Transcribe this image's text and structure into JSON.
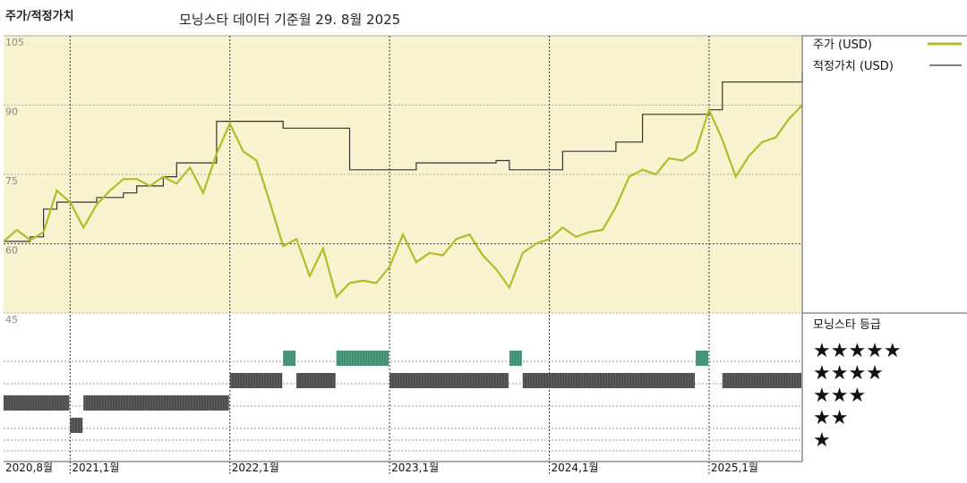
{
  "header": {
    "title": "주가/적정가치",
    "subtitle": "모닝스타 데이터 기준월 29. 8월 2025"
  },
  "colors": {
    "plot_bg": "#f8f3cf",
    "price": "#b5ba2a",
    "fair_value": "#333333",
    "rating_bar": "#4a4a4a",
    "rating_bar_5": "#3d8f6f"
  },
  "legend": {
    "price_label": "주가 (USD)",
    "fair_label": "적정가치 (USD)",
    "rating_title": "모닝스타 등급"
  },
  "rating_levels": [
    {
      "stars": 5,
      "label": "★★★★★"
    },
    {
      "stars": 4,
      "label": "★★★★"
    },
    {
      "stars": 3,
      "label": "★★★"
    },
    {
      "stars": 2,
      "label": "★★"
    },
    {
      "stars": 1,
      "label": "★"
    }
  ],
  "chart_data": {
    "type": "line",
    "x_start": "2020-08",
    "x_end": "2025-08",
    "y_ticks": [
      105,
      90,
      75,
      60,
      45
    ],
    "x_ticks": [
      "2020,8월",
      "2021,1월",
      "2022,1월",
      "2023,1월",
      "2024,1월",
      "2025,1월"
    ],
    "ylim": [
      45,
      105
    ],
    "series": [
      {
        "name": "주가 (USD)",
        "points": [
          [
            "2020-08",
            60.5
          ],
          [
            "2020-09",
            63.0
          ],
          [
            "2020-10",
            60.8
          ],
          [
            "2020-11",
            62.5
          ],
          [
            "2020-12",
            71.5
          ],
          [
            "2021-01",
            69.0
          ],
          [
            "2021-02",
            63.5
          ],
          [
            "2021-03",
            68.5
          ],
          [
            "2021-04",
            71.5
          ],
          [
            "2021-05",
            74.0
          ],
          [
            "2021-06",
            74.0
          ],
          [
            "2021-07",
            72.5
          ],
          [
            "2021-08",
            74.5
          ],
          [
            "2021-09",
            73.0
          ],
          [
            "2021-10",
            76.5
          ],
          [
            "2021-11",
            71.0
          ],
          [
            "2021-12",
            79.5
          ],
          [
            "2022-01",
            86.0
          ],
          [
            "2022-02",
            80.0
          ],
          [
            "2022-03",
            78.0
          ],
          [
            "2022-04",
            69.0
          ],
          [
            "2022-05",
            59.5
          ],
          [
            "2022-06",
            61.0
          ],
          [
            "2022-07",
            53.0
          ],
          [
            "2022-08",
            59.0
          ],
          [
            "2022-09",
            48.5
          ],
          [
            "2022-10",
            51.5
          ],
          [
            "2022-11",
            52.0
          ],
          [
            "2022-12",
            51.5
          ],
          [
            "2023-01",
            55.0
          ],
          [
            "2023-02",
            62.0
          ],
          [
            "2023-03",
            56.0
          ],
          [
            "2023-04",
            58.0
          ],
          [
            "2023-05",
            57.5
          ],
          [
            "2023-06",
            61.0
          ],
          [
            "2023-07",
            62.0
          ],
          [
            "2023-08",
            57.5
          ],
          [
            "2023-09",
            54.5
          ],
          [
            "2023-10",
            50.5
          ],
          [
            "2023-11",
            58.0
          ],
          [
            "2023-12",
            60.0
          ],
          [
            "2024-01",
            61.0
          ],
          [
            "2024-02",
            63.5
          ],
          [
            "2024-03",
            61.5
          ],
          [
            "2024-04",
            62.5
          ],
          [
            "2024-05",
            63.0
          ],
          [
            "2024-06",
            68.0
          ],
          [
            "2024-07",
            74.5
          ],
          [
            "2024-08",
            76.0
          ],
          [
            "2024-09",
            75.0
          ],
          [
            "2024-10",
            78.5
          ],
          [
            "2024-11",
            78.0
          ],
          [
            "2024-12",
            80.0
          ],
          [
            "2025-01",
            89.0
          ],
          [
            "2025-02",
            82.5
          ],
          [
            "2025-03",
            74.5
          ],
          [
            "2025-04",
            79.0
          ],
          [
            "2025-05",
            82.0
          ],
          [
            "2025-06",
            83.0
          ],
          [
            "2025-07",
            87.0
          ],
          [
            "2025-08",
            90.0
          ]
        ]
      },
      {
        "name": "적정가치 (USD)",
        "points": [
          [
            "2020-08",
            60.5
          ],
          [
            "2020-10",
            61.5
          ],
          [
            "2020-11",
            67.5
          ],
          [
            "2020-12",
            69.0
          ],
          [
            "2021-01",
            69.0
          ],
          [
            "2021-03",
            70.0
          ],
          [
            "2021-05",
            71.0
          ],
          [
            "2021-06",
            72.5
          ],
          [
            "2021-08",
            74.5
          ],
          [
            "2021-09",
            77.5
          ],
          [
            "2021-11",
            77.5
          ],
          [
            "2021-12",
            86.5
          ],
          [
            "2022-04",
            86.5
          ],
          [
            "2022-05",
            85.0
          ],
          [
            "2022-09",
            85.0
          ],
          [
            "2022-10",
            76.0
          ],
          [
            "2023-02",
            76.0
          ],
          [
            "2023-03",
            77.5
          ],
          [
            "2023-09",
            78.0
          ],
          [
            "2023-10",
            76.0
          ],
          [
            "2024-01",
            76.0
          ],
          [
            "2024-02",
            80.0
          ],
          [
            "2024-06",
            82.0
          ],
          [
            "2024-08",
            88.0
          ],
          [
            "2025-01",
            89.0
          ],
          [
            "2025-02",
            95.0
          ],
          [
            "2025-07",
            95.0
          ],
          [
            "2025-08",
            97.0
          ]
        ]
      }
    ],
    "ratings": [
      {
        "from": "2020-08",
        "to": "2021-01",
        "stars": 3
      },
      {
        "from": "2021-01",
        "to": "2021-02",
        "stars": 2
      },
      {
        "from": "2021-02",
        "to": "2022-01",
        "stars": 3
      },
      {
        "from": "2022-01",
        "to": "2022-05",
        "stars": 4
      },
      {
        "from": "2022-05",
        "to": "2022-06",
        "stars": 5
      },
      {
        "from": "2022-06",
        "to": "2022-09",
        "stars": 4
      },
      {
        "from": "2022-09",
        "to": "2023-01",
        "stars": 5
      },
      {
        "from": "2023-01",
        "to": "2023-10",
        "stars": 4
      },
      {
        "from": "2023-10",
        "to": "2023-11",
        "stars": 5
      },
      {
        "from": "2023-11",
        "to": "2024-12",
        "stars": 4
      },
      {
        "from": "2024-12",
        "to": "2025-01",
        "stars": 5
      },
      {
        "from": "2025-02",
        "to": "2025-08",
        "stars": 4
      }
    ]
  }
}
